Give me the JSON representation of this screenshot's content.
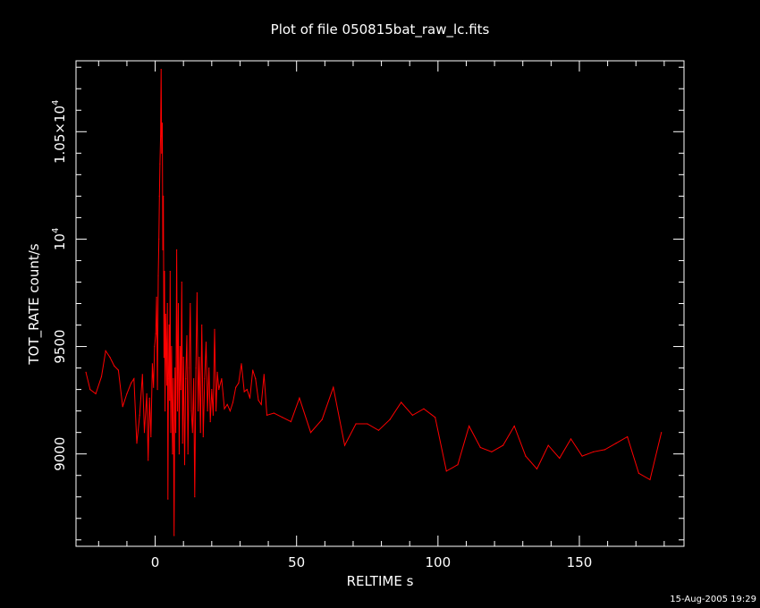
{
  "chart_data": {
    "type": "line",
    "title": "Plot of file 050815bat_raw_lc.fits",
    "xlabel": "RELTIME  s",
    "ylabel": "TOT_RATE  count/s",
    "timestamp": "15-Aug-2005 19:29",
    "xlim": [
      -28,
      187
    ],
    "ylim": [
      8570,
      10830
    ],
    "x_ticks": [
      {
        "value": 0,
        "label": "0"
      },
      {
        "value": 50,
        "label": "50"
      },
      {
        "value": 100,
        "label": "100"
      },
      {
        "value": 150,
        "label": "150"
      }
    ],
    "y_ticks": [
      {
        "value": 9000,
        "label": "9000"
      },
      {
        "value": 9500,
        "label": "9500"
      },
      {
        "value": 10000,
        "label": "10",
        "sup": "4"
      },
      {
        "value": 10500,
        "label": "1.05×10",
        "sup": "4"
      }
    ],
    "grid": false,
    "line_color": "#ff0000",
    "series": [
      {
        "name": "",
        "points": [
          [
            -24.5,
            9380
          ],
          [
            -23,
            9300
          ],
          [
            -21,
            9280
          ],
          [
            -19,
            9360
          ],
          [
            -17.5,
            9480
          ],
          [
            -16,
            9450
          ],
          [
            -14.5,
            9410
          ],
          [
            -13,
            9390
          ],
          [
            -11.5,
            9220
          ],
          [
            -10,
            9280
          ],
          [
            -8.5,
            9330
          ],
          [
            -7.5,
            9350
          ],
          [
            -6.5,
            9050
          ],
          [
            -5.5,
            9180
          ],
          [
            -4.5,
            9370
          ],
          [
            -3.8,
            9100
          ],
          [
            -3,
            9280
          ],
          [
            -2.5,
            8970
          ],
          [
            -2,
            9260
          ],
          [
            -1.5,
            9080
          ],
          [
            -1,
            9420
          ],
          [
            -0.6,
            9310
          ],
          [
            -0.2,
            9500
          ],
          [
            0.2,
            9560
          ],
          [
            0.5,
            9730
          ],
          [
            0.8,
            9300
          ],
          [
            1.1,
            9830
          ],
          [
            1.3,
            10000
          ],
          [
            1.5,
            10200
          ],
          [
            1.7,
            10350
          ],
          [
            1.9,
            10480
          ],
          [
            2.1,
            10790
          ],
          [
            2.3,
            10400
          ],
          [
            2.5,
            10540
          ],
          [
            2.7,
            9950
          ],
          [
            2.9,
            10200
          ],
          [
            3.1,
            9450
          ],
          [
            3.3,
            9850
          ],
          [
            3.5,
            9200
          ],
          [
            3.7,
            9650
          ],
          [
            3.9,
            9500
          ],
          [
            4.1,
            9320
          ],
          [
            4.3,
            9700
          ],
          [
            4.5,
            8790
          ],
          [
            4.7,
            9350
          ],
          [
            4.9,
            9600
          ],
          [
            5.1,
            9250
          ],
          [
            5.3,
            9850
          ],
          [
            5.5,
            9100
          ],
          [
            5.8,
            9500
          ],
          [
            6.1,
            9000
          ],
          [
            6.4,
            9350
          ],
          [
            6.7,
            8620
          ],
          [
            7,
            9400
          ],
          [
            7.3,
            9100
          ],
          [
            7.6,
            9950
          ],
          [
            7.9,
            9200
          ],
          [
            8.2,
            9700
          ],
          [
            8.5,
            9000
          ],
          [
            8.8,
            9500
          ],
          [
            9.1,
            9300
          ],
          [
            9.4,
            9800
          ],
          [
            9.7,
            9050
          ],
          [
            10,
            9450
          ],
          [
            10.4,
            8950
          ],
          [
            10.8,
            9350
          ],
          [
            11.2,
            9550
          ],
          [
            11.6,
            9000
          ],
          [
            12,
            9400
          ],
          [
            12.4,
            9700
          ],
          [
            12.8,
            9200
          ],
          [
            13.2,
            9100
          ],
          [
            13.6,
            9350
          ],
          [
            14,
            8800
          ],
          [
            14.4,
            9400
          ],
          [
            14.8,
            9750
          ],
          [
            15.2,
            9200
          ],
          [
            15.6,
            9450
          ],
          [
            16,
            9100
          ],
          [
            16.5,
            9600
          ],
          [
            17,
            9080
          ],
          [
            17.5,
            9350
          ],
          [
            18,
            9520
          ],
          [
            18.5,
            9200
          ],
          [
            19,
            9400
          ],
          [
            19.5,
            9150
          ],
          [
            20,
            9300
          ],
          [
            20.5,
            9180
          ],
          [
            21,
            9580
          ],
          [
            21.5,
            9200
          ],
          [
            22,
            9380
          ],
          [
            22.5,
            9300
          ],
          [
            23.5,
            9350
          ],
          [
            24.5,
            9210
          ],
          [
            25.5,
            9230
          ],
          [
            26.5,
            9200
          ],
          [
            27.5,
            9240
          ],
          [
            28.5,
            9310
          ],
          [
            29.5,
            9330
          ],
          [
            30.5,
            9420
          ],
          [
            31.5,
            9290
          ],
          [
            32.5,
            9300
          ],
          [
            33.5,
            9260
          ],
          [
            34.5,
            9390
          ],
          [
            35.5,
            9350
          ],
          [
            36.5,
            9250
          ],
          [
            37.5,
            9230
          ],
          [
            38.5,
            9370
          ],
          [
            39.5,
            9180
          ],
          [
            42,
            9190
          ],
          [
            45,
            9170
          ],
          [
            48,
            9150
          ],
          [
            51,
            9260
          ],
          [
            55,
            9100
          ],
          [
            59,
            9160
          ],
          [
            63,
            9310
          ],
          [
            67,
            9040
          ],
          [
            71,
            9140
          ],
          [
            75,
            9140
          ],
          [
            79,
            9110
          ],
          [
            83,
            9160
          ],
          [
            87,
            9240
          ],
          [
            91,
            9180
          ],
          [
            95,
            9210
          ],
          [
            99,
            9170
          ],
          [
            103,
            8920
          ],
          [
            107,
            8950
          ],
          [
            111,
            9130
          ],
          [
            115,
            9030
          ],
          [
            119,
            9010
          ],
          [
            123,
            9040
          ],
          [
            127,
            9130
          ],
          [
            131,
            8990
          ],
          [
            135,
            8930
          ],
          [
            139,
            9040
          ],
          [
            143,
            8980
          ],
          [
            147,
            9070
          ],
          [
            151,
            8990
          ],
          [
            155,
            9010
          ],
          [
            159,
            9020
          ],
          [
            163,
            9050
          ],
          [
            167,
            9080
          ],
          [
            171,
            8910
          ],
          [
            175,
            8880
          ],
          [
            179,
            9100
          ]
        ]
      }
    ]
  }
}
